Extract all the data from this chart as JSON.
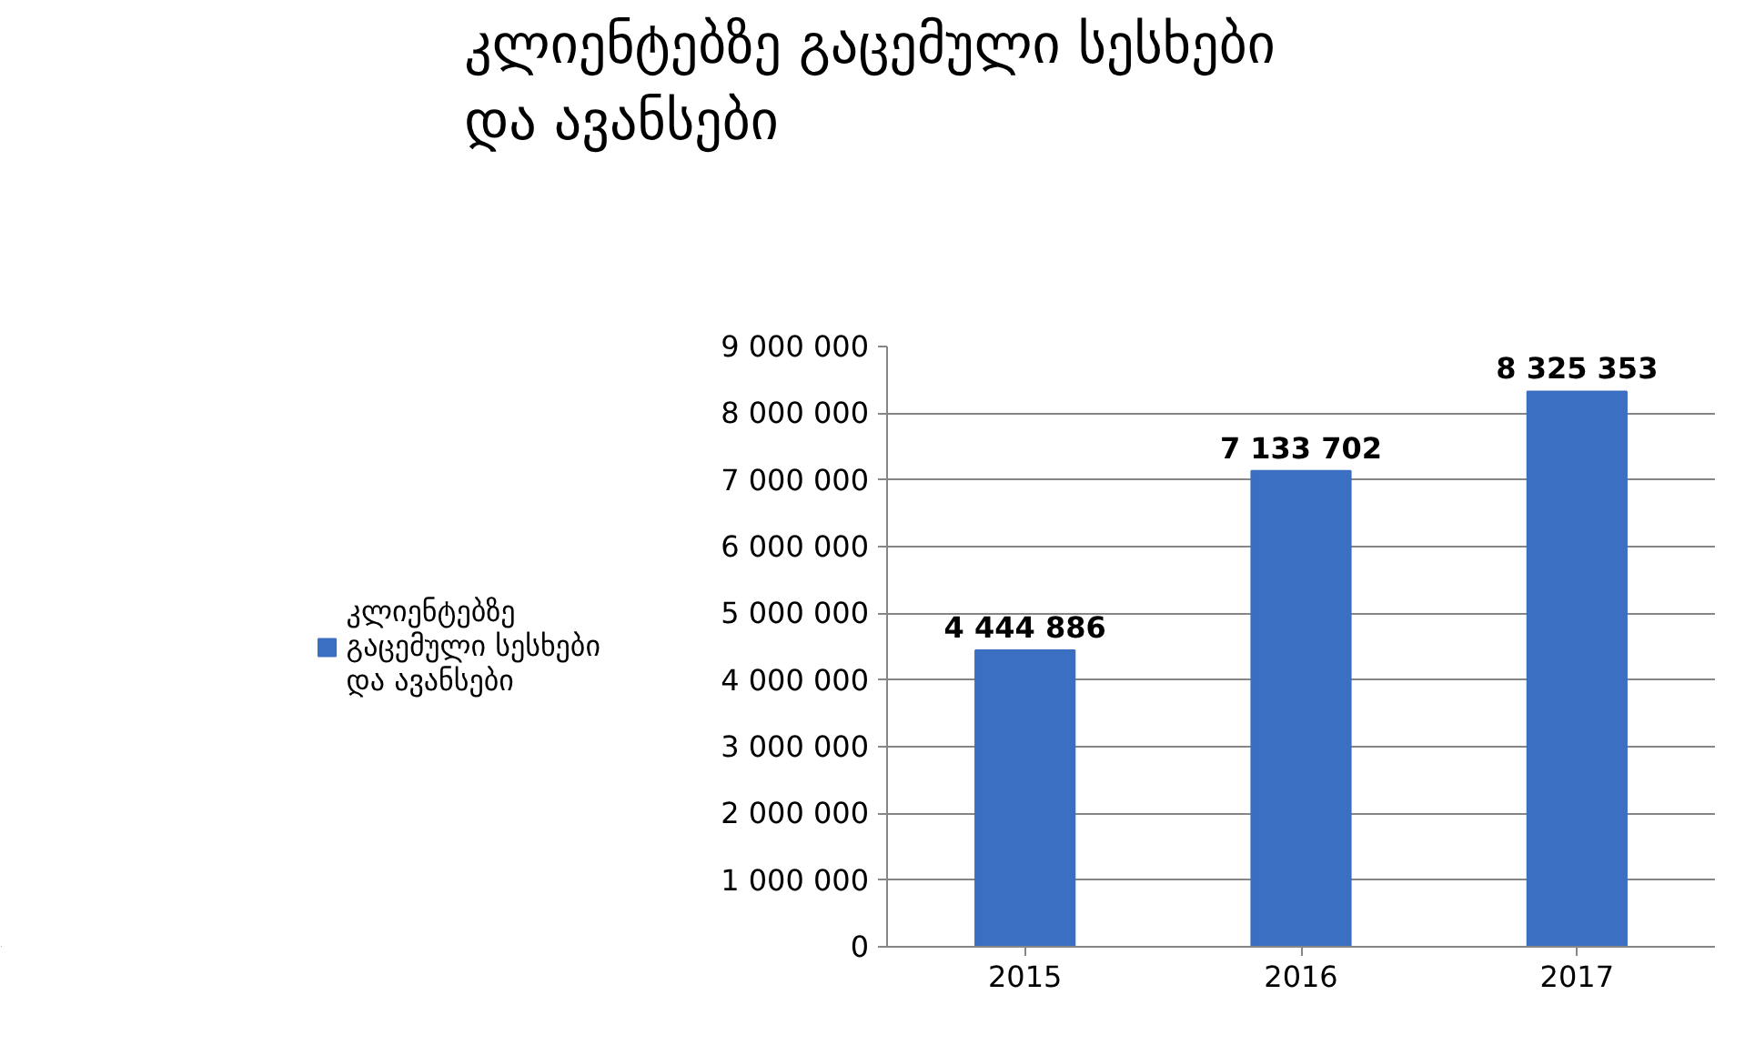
{
  "chart_data": {
    "type": "bar",
    "title": "კლიენტებზე გაცემული სესხები და ავანსები",
    "categories": [
      "2015",
      "2016",
      "2017"
    ],
    "series": [
      {
        "name": "კლიენტებზე გაცემული სესხები და ავანსები",
        "color": "#3b6fc2",
        "values": [
          4444886,
          7133702,
          8325353
        ],
        "value_labels": [
          "4 444 886",
          "7 133 702",
          "8 325 353"
        ]
      }
    ],
    "ylim": [
      0,
      9000000
    ],
    "yticks": [
      {
        "value": 0,
        "label": "0"
      },
      {
        "value": 1000000,
        "label": "1 000 000"
      },
      {
        "value": 2000000,
        "label": "2 000 000"
      },
      {
        "value": 3000000,
        "label": "3 000 000"
      },
      {
        "value": 4000000,
        "label": "4 000 000"
      },
      {
        "value": 5000000,
        "label": "5 000 000"
      },
      {
        "value": 6000000,
        "label": "6 000 000"
      },
      {
        "value": 7000000,
        "label": "7 000 000"
      },
      {
        "value": 8000000,
        "label": "8 000 000"
      },
      {
        "value": 9000000,
        "label": "9 000 000"
      }
    ],
    "grid": "y",
    "legend": "left"
  }
}
